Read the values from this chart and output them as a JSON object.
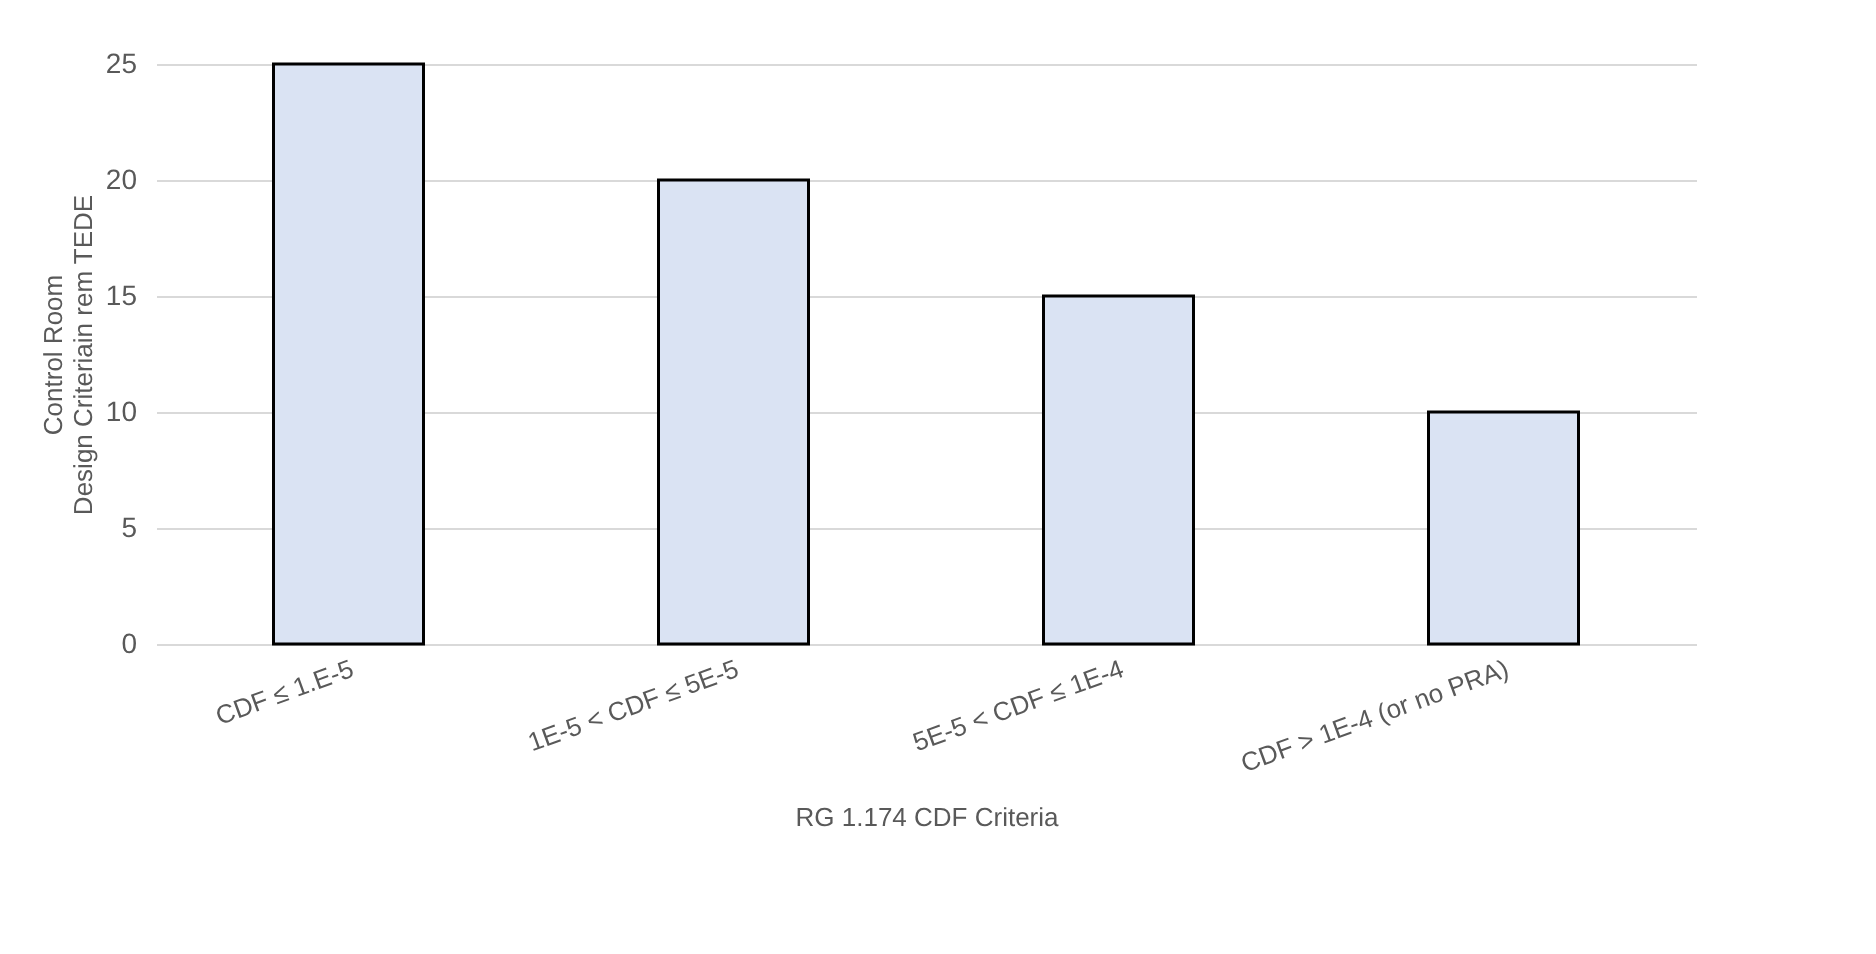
{
  "chart_data": {
    "type": "bar",
    "xlabel": "RG 1.174 CDF Criteria",
    "ylabel": "Control Room\nDesign Criteriain rem TEDE",
    "categories": [
      "CDF ≤ 1.E-5",
      "1E-5 < CDF ≤ 5E-5",
      "5E-5 < CDF ≤ 1E-4",
      "CDF > 1E-4 (or no PRA)"
    ],
    "values": [
      25,
      20,
      15,
      10
    ],
    "color": "#dae3f3",
    "ylim": [
      0,
      25
    ],
    "yticks": [
      0,
      5,
      10,
      15,
      20,
      25
    ],
    "grid": "y"
  }
}
